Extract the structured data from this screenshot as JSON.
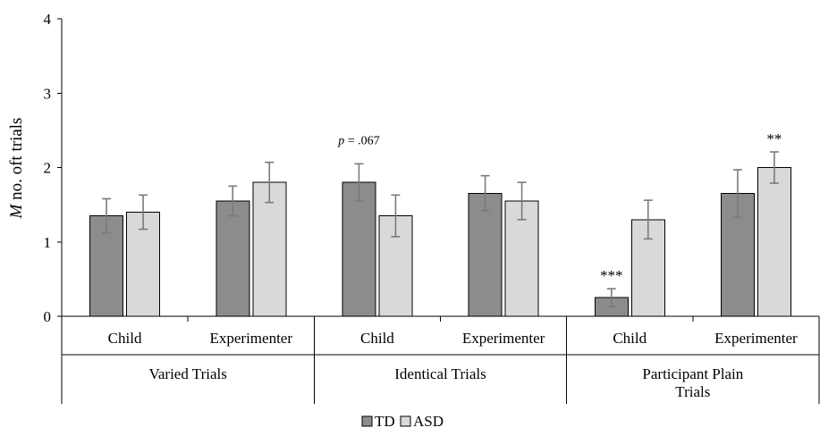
{
  "chart_data": {
    "type": "bar",
    "ylabel_italic": "M",
    "ylabel_rest": " no. oft trials",
    "ylim": [
      0,
      4
    ],
    "yticks": [
      "0",
      "1",
      "2",
      "3",
      "4"
    ],
    "grid": false,
    "legend_position": "bottom",
    "groups": [
      {
        "label_lines": [
          "Varied Trials"
        ],
        "categories": [
          "Child",
          "Experimenter"
        ]
      },
      {
        "label_lines": [
          "Identical Trials"
        ],
        "categories": [
          "Child",
          "Experimenter"
        ]
      },
      {
        "label_lines": [
          "Participant Plain",
          "Trials"
        ],
        "categories": [
          "Child",
          "Experimenter"
        ]
      }
    ],
    "categories": [
      "Child",
      "Experimenter",
      "Child",
      "Experimenter",
      "Child",
      "Experimenter"
    ],
    "series": [
      {
        "name": "TD",
        "color": "#8c8c8c",
        "values": [
          1.35,
          1.55,
          1.8,
          1.65,
          0.25,
          1.65
        ],
        "error_low": [
          1.12,
          1.35,
          1.55,
          1.42,
          0.13,
          1.33
        ],
        "error_high": [
          1.58,
          1.75,
          2.05,
          1.89,
          0.37,
          1.97
        ]
      },
      {
        "name": "ASD",
        "color": "#d9d9d9",
        "values": [
          1.4,
          1.8,
          1.35,
          1.55,
          1.3,
          2.0
        ],
        "error_low": [
          1.17,
          1.53,
          1.07,
          1.3,
          1.04,
          1.79
        ],
        "error_high": [
          1.63,
          2.07,
          1.63,
          1.8,
          1.56,
          2.21
        ]
      }
    ],
    "annotations": [
      {
        "series": 0,
        "category_index": 2,
        "italic": "p",
        "text": " = .067"
      },
      {
        "series": 0,
        "category_index": 4,
        "italic": "",
        "text": "***"
      },
      {
        "series": 1,
        "category_index": 5,
        "italic": "",
        "text": "**"
      }
    ]
  }
}
